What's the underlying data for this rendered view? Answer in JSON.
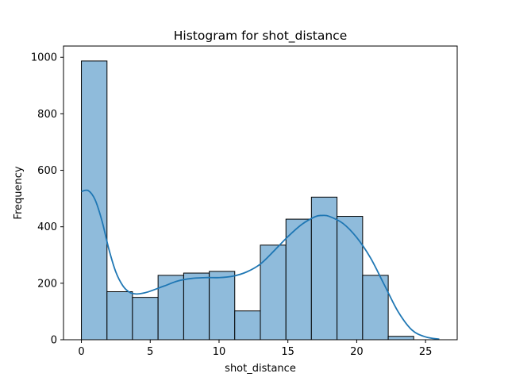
{
  "chart_data": {
    "type": "bar",
    "title": "Histogram for shot_distance",
    "xlabel": "shot_distance",
    "ylabel": "Frequency",
    "xlim": [
      -1.3,
      27.3
    ],
    "ylim": [
      0,
      1040
    ],
    "xticks": [
      0,
      5,
      10,
      15,
      20,
      25
    ],
    "yticks": [
      0,
      200,
      400,
      600,
      800,
      1000
    ],
    "grid": false,
    "bins": [
      {
        "start": 0.0,
        "end": 1.86,
        "count": 987
      },
      {
        "start": 1.86,
        "end": 3.71,
        "count": 170
      },
      {
        "start": 3.71,
        "end": 5.57,
        "count": 150
      },
      {
        "start": 5.57,
        "end": 7.43,
        "count": 228
      },
      {
        "start": 7.43,
        "end": 9.29,
        "count": 236
      },
      {
        "start": 9.29,
        "end": 11.14,
        "count": 242
      },
      {
        "start": 11.14,
        "end": 13.0,
        "count": 102
      },
      {
        "start": 13.0,
        "end": 14.86,
        "count": 335
      },
      {
        "start": 14.86,
        "end": 16.71,
        "count": 427
      },
      {
        "start": 16.71,
        "end": 18.57,
        "count": 505
      },
      {
        "start": 18.57,
        "end": 20.43,
        "count": 437
      },
      {
        "start": 20.43,
        "end": 22.29,
        "count": 228
      },
      {
        "start": 22.29,
        "end": 24.14,
        "count": 12
      }
    ],
    "kde": {
      "x": [
        0,
        0.5,
        1,
        1.5,
        2,
        2.5,
        3,
        3.5,
        4,
        4.5,
        5,
        6,
        7,
        8,
        9,
        10,
        11,
        12,
        13,
        14,
        15,
        16,
        17,
        17.5,
        18,
        19,
        20,
        21,
        22,
        23,
        24,
        25,
        26
      ],
      "y": [
        525,
        528,
        495,
        420,
        320,
        240,
        192,
        168,
        162,
        165,
        172,
        190,
        208,
        217,
        220,
        220,
        225,
        240,
        268,
        315,
        365,
        408,
        436,
        440,
        437,
        412,
        362,
        290,
        195,
        100,
        35,
        10,
        2
      ]
    },
    "colors": {
      "bar_fill": "#8fbbdb",
      "bar_edge": "#000000",
      "kde_line": "#1f77b4"
    }
  }
}
